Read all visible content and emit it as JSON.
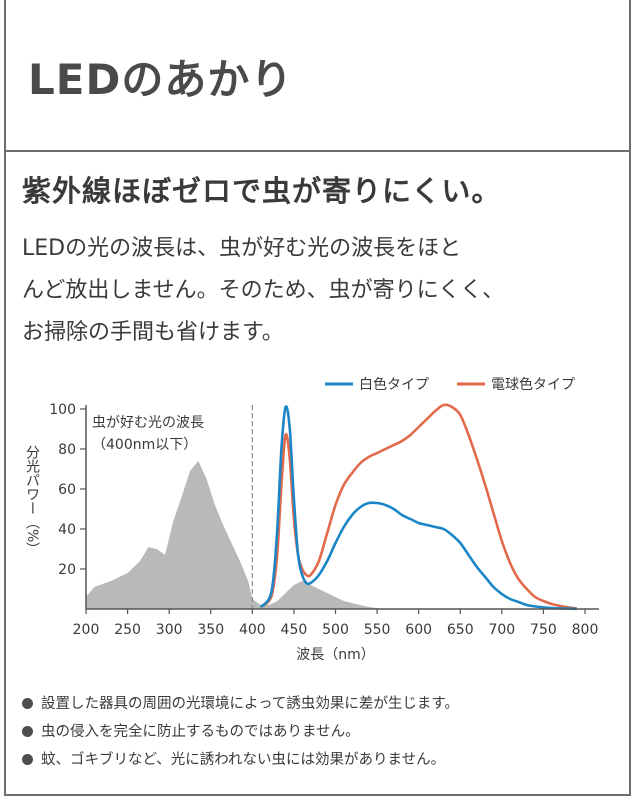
{
  "page": {
    "title": "LEDのあかり",
    "headline": "紫外線ほぼゼロで虫が寄りにくい。",
    "body_lines": [
      "LEDの光の波長は、虫が好む光の波長をほと",
      "んど放出しません。そのため、虫が寄りにくく、",
      "お掃除の手間も省けます。"
    ],
    "notes": [
      "設置した器具の周囲の光環境によって誘虫効果に差が生じます。",
      "虫の侵入を完全に防止するものではありません。",
      "蚊、ゴキブリなど、光に誘われない虫には効果がありません。"
    ]
  },
  "chart_data": {
    "type": "area",
    "xlabel": "波長（nm）",
    "ylabel": "分光パワー（%）",
    "xlim": [
      200,
      800
    ],
    "ylim": [
      0,
      100
    ],
    "x_ticks": [
      200,
      250,
      300,
      350,
      400,
      450,
      500,
      550,
      600,
      650,
      700,
      750,
      800
    ],
    "y_ticks": [
      20,
      40,
      60,
      80,
      100
    ],
    "grid": false,
    "legend_position": "top-right",
    "annotation": {
      "lines": [
        "虫が好む光の波長",
        "（400nm以下）"
      ],
      "boundary_x": 400
    },
    "insect_sensitivity": {
      "color": "#b9b9b9",
      "x": [
        200,
        210,
        230,
        250,
        265,
        275,
        285,
        295,
        305,
        315,
        325,
        335,
        345,
        355,
        365,
        375,
        385,
        395,
        400,
        410,
        420,
        430,
        440,
        450,
        460,
        470,
        480,
        490,
        500,
        510,
        520,
        530,
        540,
        550,
        560
      ],
      "y": [
        6,
        11,
        14,
        18,
        24,
        31,
        30,
        27,
        44,
        56,
        69,
        74,
        65,
        52,
        42,
        33,
        24,
        14,
        5,
        2,
        2,
        4,
        8,
        12,
        14,
        12,
        10,
        8,
        6,
        4,
        3,
        2,
        1,
        0.5,
        0
      ]
    },
    "series": [
      {
        "name": "白色タイプ",
        "color": "#1b86c6",
        "x": [
          410,
          420,
          425,
          430,
          435,
          440,
          445,
          450,
          455,
          460,
          465,
          470,
          480,
          490,
          500,
          510,
          520,
          530,
          540,
          550,
          560,
          570,
          580,
          590,
          600,
          610,
          620,
          630,
          640,
          650,
          660,
          670,
          680,
          690,
          700,
          710,
          720,
          730,
          740,
          750,
          760,
          770,
          780,
          790
        ],
        "y": [
          1,
          5,
          14,
          40,
          80,
          101,
          90,
          55,
          27,
          17,
          13,
          13,
          17,
          24,
          33,
          41,
          47,
          51,
          53,
          53,
          52,
          50,
          47,
          45,
          43,
          42,
          41,
          40,
          37,
          33,
          27,
          21,
          16,
          11,
          7.5,
          5,
          3.5,
          2,
          1.3,
          0.8,
          0.5,
          0.3,
          0.2,
          0.1
        ]
      },
      {
        "name": "電球色タイプ",
        "color": "#e26a4b",
        "x": [
          410,
          420,
          425,
          430,
          435,
          440,
          445,
          450,
          455,
          460,
          465,
          470,
          480,
          490,
          500,
          510,
          520,
          530,
          540,
          550,
          560,
          570,
          580,
          590,
          600,
          610,
          620,
          630,
          640,
          650,
          660,
          670,
          680,
          690,
          700,
          710,
          720,
          730,
          740,
          750,
          760,
          770,
          780,
          790
        ],
        "y": [
          1,
          4,
          10,
          28,
          62,
          87,
          75,
          45,
          27,
          20,
          17,
          17,
          24,
          38,
          52,
          62,
          68,
          73,
          76,
          78,
          80,
          82,
          84,
          87,
          91,
          95,
          99,
          102,
          101,
          97,
          87,
          75,
          62,
          48,
          34,
          23,
          15,
          10,
          6,
          4,
          2.5,
          1.5,
          0.8,
          0.3
        ]
      }
    ]
  }
}
